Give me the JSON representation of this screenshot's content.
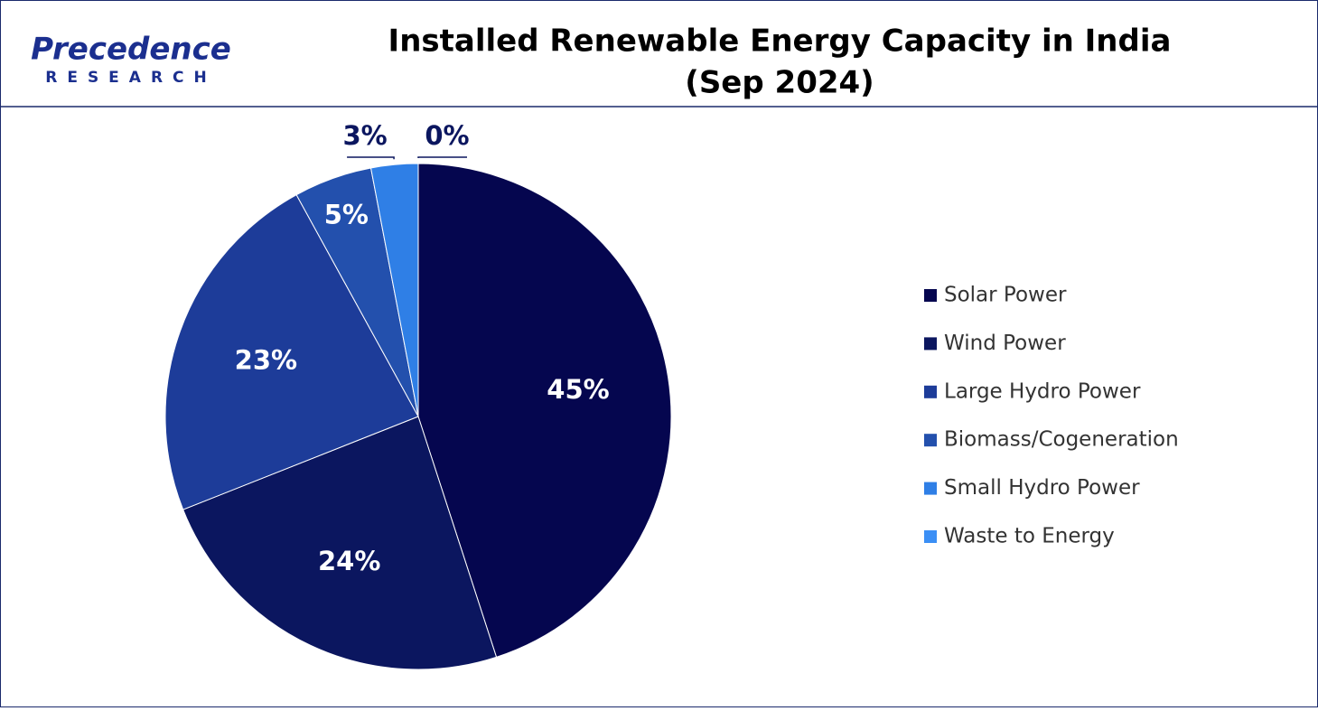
{
  "logo": {
    "name": "Precedence",
    "tagline": "RESEARCH"
  },
  "chart_data": {
    "type": "pie",
    "title": "Installed Renewable Energy Capacity in India",
    "subtitle": "(Sep 2024)",
    "categories": [
      "Solar Power",
      "Wind Power",
      "Large Hydro Power",
      "Biomass/Cogeneration",
      "Small Hydro Power",
      "Waste to Energy"
    ],
    "values": [
      45,
      24,
      23,
      5,
      3,
      0
    ],
    "value_labels": [
      "45%",
      "24%",
      "23%",
      "5%",
      "3%",
      "0%"
    ],
    "colors": [
      "#05064f",
      "#0b165f",
      "#1d3c99",
      "#2350ad",
      "#2f7fe6",
      "#3b8ff5"
    ],
    "legend": "right"
  }
}
